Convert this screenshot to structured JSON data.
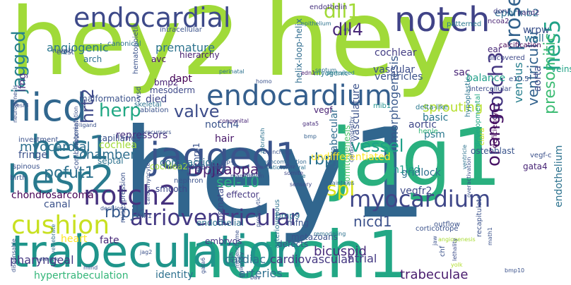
{
  "words": [
    {
      "text": "hey2",
      "color": "#a0da39",
      "rot": false
    },
    {
      "text": "hey",
      "color": "#a0da39",
      "rot": false
    },
    {
      "text": "hey1",
      "color": "#31668e",
      "rot": false
    },
    {
      "text": "notch1",
      "color": "#22a785",
      "rot": false
    },
    {
      "text": "jag1",
      "color": "#2ab07f",
      "rot": false
    },
    {
      "text": "trabeculation",
      "color": "#1f958b",
      "rot": false
    },
    {
      "text": "notch",
      "color": "#404387",
      "rot": false
    },
    {
      "text": "jagged1",
      "color": "#3a538b",
      "rot": false
    },
    {
      "text": "endocardial",
      "color": "#3e4a89",
      "rot": false
    },
    {
      "text": "hesr2",
      "color": "#297a8e",
      "rot": false
    },
    {
      "text": "nicd",
      "color": "#31678e",
      "rot": false
    },
    {
      "text": "hes1",
      "color": "#2b758e",
      "rot": false
    },
    {
      "text": "endocardium",
      "color": "#355f8d",
      "rot": false
    },
    {
      "text": "notch2",
      "color": "#46327e",
      "rot": false
    },
    {
      "text": "cushion",
      "color": "#c8e020",
      "rot": false
    },
    {
      "text": "myocardium",
      "color": "#3f4788",
      "rot": false
    },
    {
      "text": "atrioventricular",
      "color": "#443983",
      "rot": false
    },
    {
      "text": "jagged",
      "color": "#26828e",
      "rot": true
    },
    {
      "text": "dll1",
      "color": "#a2da37",
      "rot": false
    },
    {
      "text": "dll4",
      "color": "#482878",
      "rot": false
    },
    {
      "text": "prosensory",
      "color": "#33628d",
      "rot": true
    },
    {
      "text": "notch3",
      "color": "#453781",
      "rot": true
    },
    {
      "text": "orange",
      "color": "#471365",
      "rot": true
    },
    {
      "text": "hes5",
      "color": "#1fa187",
      "rot": true
    },
    {
      "text": "valve",
      "color": "#3d4d8a",
      "rot": false
    },
    {
      "text": "herp",
      "color": "#22a884",
      "rot": false
    },
    {
      "text": "hrt2",
      "color": "#3e4989",
      "rot": true
    },
    {
      "text": "rbpj",
      "color": "#2c718e",
      "rot": false
    },
    {
      "text": "rbpjk",
      "color": "#375b8d",
      "rot": false
    },
    {
      "text": "rbpjkappa",
      "color": "#481f70",
      "rot": false
    },
    {
      "text": "spl",
      "color": "#d8e219",
      "rot": false
    },
    {
      "text": "pofut1",
      "color": "#2d718e",
      "rot": false
    },
    {
      "text": "chamber",
      "color": "#2e6e8e",
      "rot": false
    },
    {
      "text": "vessel",
      "color": "#1fa088",
      "rot": false
    },
    {
      "text": "nicd1",
      "color": "#3b518b",
      "rot": false
    },
    {
      "text": "presomitic",
      "color": "#3dbc74",
      "rot": true
    },
    {
      "text": "ventricular",
      "color": "#33628d",
      "rot": true
    },
    {
      "text": "morphogenesis",
      "color": "#38588c",
      "rot": true
    },
    {
      "text": "sel-10",
      "color": "#28ae80",
      "rot": false
    },
    {
      "text": "bicuspid",
      "color": "#472a7a",
      "rot": false
    },
    {
      "text": "arteries",
      "color": "#2d708e",
      "rot": false
    },
    {
      "text": "cardiovascular",
      "color": "#453882",
      "rot": false
    },
    {
      "text": "atrial",
      "color": "#443983",
      "rot": false
    },
    {
      "text": "trabeculae",
      "color": "#481b6d",
      "rot": false
    },
    {
      "text": "hypertrabeculation",
      "color": "#34b679",
      "rot": false
    },
    {
      "text": "identity",
      "color": "#2d708e",
      "rot": false
    },
    {
      "text": "cardiac",
      "color": "#2e6f8e",
      "rot": false
    },
    {
      "text": "fate",
      "color": "#482979",
      "rot": false
    },
    {
      "text": "pharyngeal",
      "color": "#453882",
      "rot": false
    },
    {
      "text": "heart",
      "color": "#fde725",
      "rot": false
    },
    {
      "text": "canal",
      "color": "#3b528b",
      "rot": false
    },
    {
      "text": "chondrosarcoma",
      "color": "#440154",
      "rot": false
    },
    {
      "text": "myocardial",
      "color": "#2d708e",
      "rot": false
    },
    {
      "text": "repressors",
      "color": "#46307e",
      "rot": false
    },
    {
      "text": "notch4",
      "color": "#3a548c",
      "rot": false
    },
    {
      "text": "hair",
      "color": "#481769",
      "rot": false
    },
    {
      "text": "cochlea",
      "color": "#a0da39",
      "rot": false
    },
    {
      "text": "fringe",
      "color": "#3b528b",
      "rot": false
    },
    {
      "text": "angiogenic",
      "color": "#2a778e",
      "rot": false
    },
    {
      "text": "lfng",
      "color": "#472e7c",
      "rot": true
    },
    {
      "text": "premature",
      "color": "#2c738e",
      "rot": false
    },
    {
      "text": "dapt",
      "color": "#440154",
      "rot": false
    },
    {
      "text": "arch",
      "color": "#2c718e",
      "rot": false
    },
    {
      "text": "avc",
      "color": "#481668",
      "rot": false
    },
    {
      "text": "mesoderm",
      "color": "#3e4989",
      "rot": false
    },
    {
      "text": "died",
      "color": "#3f4788",
      "rot": false
    },
    {
      "text": "bmp2",
      "color": "#482576",
      "rot": false
    },
    {
      "text": "hierarchy",
      "color": "#482071",
      "rot": false
    },
    {
      "text": "helix-loop-helix",
      "color": "#2f6c8e",
      "rot": true
    },
    {
      "text": "trabecular",
      "color": "#2f6b8e",
      "rot": true
    },
    {
      "text": "vasculature",
      "color": "#3b528b",
      "rot": true
    },
    {
      "text": "somitogenesis",
      "color": "#50c46a",
      "rot": true
    },
    {
      "text": "sprouting",
      "color": "#b5de2b",
      "rot": false
    },
    {
      "text": "basic",
      "color": "#2a768e",
      "rot": false
    },
    {
      "text": "aortic",
      "color": "#3f4889",
      "rot": false
    },
    {
      "text": "venous",
      "color": "#277f8e",
      "rot": true
    },
    {
      "text": "aorta",
      "color": "#3e4a89",
      "rot": true
    },
    {
      "text": "endothelium",
      "color": "#2c728e",
      "rot": true
    },
    {
      "text": "n1icd",
      "color": "#1f9e89",
      "rot": false
    },
    {
      "text": "gridlock",
      "color": "#2d718e",
      "rot": false
    },
    {
      "text": "osteoblast",
      "color": "#3a548c",
      "rot": false
    },
    {
      "text": "ventricles",
      "color": "#3b528b",
      "rot": false
    },
    {
      "text": "sac",
      "color": "#482475",
      "rot": false
    },
    {
      "text": "balance",
      "color": "#1f9f88",
      "rot": false
    },
    {
      "text": "psm",
      "color": "#2a788e",
      "rot": false
    },
    {
      "text": "vascular",
      "color": "#3d4d8a",
      "rot": false
    },
    {
      "text": "cochlear",
      "color": "#433d84",
      "rot": false
    },
    {
      "text": "ephrinb2",
      "color": "#2e6d8e",
      "rot": false
    },
    {
      "text": "wrpw",
      "color": "#3b518b",
      "rot": false
    },
    {
      "text": "wall",
      "color": "#2c718e",
      "rot": false
    },
    {
      "text": "veins",
      "color": "#20a386",
      "rot": false
    },
    {
      "text": "ear",
      "color": "#482979",
      "rot": false
    },
    {
      "text": "e10.5",
      "color": "#3b528b",
      "rot": false
    },
    {
      "text": "calcification",
      "color": "#440154",
      "rot": false
    },
    {
      "text": "uncovered",
      "color": "#3e4989",
      "rot": false
    },
    {
      "text": "ncoa2",
      "color": "#482071",
      "rot": false
    },
    {
      "text": "patterned",
      "color": "#2a788e",
      "rot": false
    },
    {
      "text": "dorv",
      "color": "#433e85",
      "rot": false
    },
    {
      "text": "hand2",
      "color": "#46327e",
      "rot": false
    },
    {
      "text": "hypoplastic",
      "color": "#2b748e",
      "rot": true
    },
    {
      "text": "intercellular",
      "color": "#3d4d8a",
      "rot": false
    },
    {
      "text": "clara",
      "color": "#cde11d",
      "rot": true
    },
    {
      "text": "developmental",
      "color": "#22a884",
      "rot": true
    },
    {
      "text": "deficiency",
      "color": "#440154",
      "rot": true
    },
    {
      "text": "vegf-c",
      "color": "#3b518b",
      "rot": false
    },
    {
      "text": "gata4",
      "color": "#482576",
      "rot": false
    },
    {
      "text": "vegfr2",
      "color": "#3e4a89",
      "rot": false
    },
    {
      "text": "myogenic",
      "color": "#2b758e",
      "rot": false
    },
    {
      "text": "vegf",
      "color": "#482173",
      "rot": false
    },
    {
      "text": "mib1",
      "color": "#21918c",
      "rot": false
    },
    {
      "text": "delta-like",
      "color": "#2a788e",
      "rot": false
    },
    {
      "text": "henle",
      "color": "#35b779",
      "rot": false
    },
    {
      "text": "undifferentiated",
      "color": "#fde725",
      "rot": false
    },
    {
      "text": "edn1",
      "color": "#481c6e",
      "rot": false
    },
    {
      "text": "gata5",
      "color": "#472d7b",
      "rot": false
    },
    {
      "text": "endothelin",
      "color": "#46327e",
      "rot": false
    },
    {
      "text": "av",
      "color": "#3b528b",
      "rot": false
    },
    {
      "text": "septum",
      "color": "#2d708e",
      "rot": false
    },
    {
      "text": "perturbed",
      "color": "#26828e",
      "rot": false
    },
    {
      "text": "homo",
      "color": "#3b528b",
      "rot": false
    },
    {
      "text": "epithelium",
      "color": "#2c728e",
      "rot": false
    },
    {
      "text": "perinatal",
      "color": "#2c718e",
      "rot": false
    },
    {
      "text": "congenital",
      "color": "#482576",
      "rot": false
    },
    {
      "text": "branching",
      "color": "#3b528b",
      "rot": false
    },
    {
      "text": "spatiotemporal",
      "color": "#2c718e",
      "rot": false
    },
    {
      "text": "noncompaction",
      "color": "#31678e",
      "rot": false
    },
    {
      "text": "sensory",
      "color": "#3e4a89",
      "rot": false
    },
    {
      "text": "rise",
      "color": "#2c718e",
      "rot": false
    },
    {
      "text": "maintains",
      "color": "#31678e",
      "rot": false
    },
    {
      "text": "bmp",
      "color": "#34608d",
      "rot": false
    },
    {
      "text": "effector",
      "color": "#453882",
      "rot": false
    },
    {
      "text": "bmp9",
      "color": "#2c718e",
      "rot": false
    },
    {
      "text": "mfng",
      "color": "#3b528b",
      "rot": false
    },
    {
      "text": "embryos",
      "color": "#443983",
      "rot": false
    },
    {
      "text": "metazoans",
      "color": "#3b528b",
      "rot": false
    },
    {
      "text": "defects",
      "color": "#3b528b",
      "rot": false
    },
    {
      "text": "remodeling",
      "color": "#2c718e",
      "rot": false
    },
    {
      "text": "proteolytic",
      "color": "#3b528b",
      "rot": true
    },
    {
      "text": "zebrafish",
      "color": "#2c718e",
      "rot": true
    },
    {
      "text": "ehand",
      "color": "#3b528b",
      "rot": false
    },
    {
      "text": "mammalian",
      "color": "#3b528b",
      "rot": false
    },
    {
      "text": "somite",
      "color": "#3f4788",
      "rot": false
    },
    {
      "text": "corticotrope",
      "color": "#3b528b",
      "rot": false
    },
    {
      "text": "angiogenesis",
      "color": "#a8db34",
      "rot": false
    },
    {
      "text": "outflow",
      "color": "#3b528b",
      "rot": false
    },
    {
      "text": "recapitulate",
      "color": "#3b528b",
      "rot": true
    },
    {
      "text": "chf",
      "color": "#3b528b",
      "rot": true
    },
    {
      "text": "jaw",
      "color": "#3b528b",
      "rot": true
    },
    {
      "text": "math1",
      "color": "#3b528b",
      "rot": true
    },
    {
      "text": "bmp10",
      "color": "#3b528b",
      "rot": false
    },
    {
      "text": "yolk",
      "color": "#b2dd2d",
      "rot": false
    },
    {
      "text": "lethality",
      "color": "#3d4d8a",
      "rot": true
    },
    {
      "text": "arteriovenous",
      "color": "#2c718e",
      "rot": true
    },
    {
      "text": "postnatal",
      "color": "#3e4989",
      "rot": true
    },
    {
      "text": "nrp1",
      "color": "#3b528b",
      "rot": true
    },
    {
      "text": "endothelial",
      "color": "#2c718e",
      "rot": false
    },
    {
      "text": "nephron",
      "color": "#3b528b",
      "rot": false
    },
    {
      "text": "progenitor",
      "color": "#3b528b",
      "rot": false
    },
    {
      "text": "smooth",
      "color": "#3e4989",
      "rot": false
    },
    {
      "text": "cochlea2",
      "color": "#a0da39",
      "rot": false
    },
    {
      "text": "combinatorial",
      "color": "#3b528b",
      "rot": true
    },
    {
      "text": "misexpression",
      "color": "#3b528b",
      "rot": true
    },
    {
      "text": "capillaries",
      "color": "#3b528b",
      "rot": false
    },
    {
      "text": "septal",
      "color": "#2c718e",
      "rot": false
    },
    {
      "text": "compaction",
      "color": "#2c718e",
      "rot": false
    },
    {
      "text": "investment",
      "color": "#3b528b",
      "rot": false
    },
    {
      "text": "cardiomyocyte",
      "color": "#3b528b",
      "rot": true
    },
    {
      "text": "segmentation",
      "color": "#3b528b",
      "rot": true
    },
    {
      "text": "hematopoietic",
      "color": "#3b528b",
      "rot": true
    },
    {
      "text": "ablation",
      "color": "#3b528b",
      "rot": false
    },
    {
      "text": "skeletal",
      "color": "#2c718e",
      "rot": false
    },
    {
      "text": "vsd",
      "color": "#3b528b",
      "rot": true
    },
    {
      "text": "malformations",
      "color": "#3b528b",
      "rot": false
    },
    {
      "text": "numb",
      "color": "#3b528b",
      "rot": false
    },
    {
      "text": "crest",
      "color": "#3b528b",
      "rot": false
    },
    {
      "text": "canonical",
      "color": "#2c718e",
      "rot": false
    },
    {
      "text": "intracellular",
      "color": "#3b528b",
      "rot": false
    },
    {
      "text": "rbp-j",
      "color": "#3b528b",
      "rot": false
    },
    {
      "text": "alk1",
      "color": "#3b528b",
      "rot": false
    },
    {
      "text": "vertebrate",
      "color": "#2c718e",
      "rot": true
    },
    {
      "text": "hesr3",
      "color": "#3b528b",
      "rot": false
    },
    {
      "text": "neurogenesis",
      "color": "#3b528b",
      "rot": true
    },
    {
      "text": "ligand",
      "color": "#3b528b",
      "rot": false
    },
    {
      "text": "spinous",
      "color": "#3b528b",
      "rot": false
    },
    {
      "text": "birth",
      "color": "#3b528b",
      "rot": false
    },
    {
      "text": "precursors",
      "color": "#3b528b",
      "rot": false
    },
    {
      "text": "decisions",
      "color": "#3b528b",
      "rot": false
    },
    {
      "text": "network",
      "color": "#3b528b",
      "rot": false
    },
    {
      "text": "jag2",
      "color": "#3b528b",
      "rot": false
    },
    {
      "text": "mind",
      "color": "#3b528b",
      "rot": false
    },
    {
      "text": "dispensable",
      "color": "#3b528b",
      "rot": true
    },
    {
      "text": "strikingly",
      "color": "#3b528b",
      "rot": true
    },
    {
      "text": "mesenchyme",
      "color": "#3b528b",
      "rot": true
    },
    {
      "text": "dsh",
      "color": "#3b528b",
      "rot": true
    },
    {
      "text": "bav",
      "color": "#3b528b",
      "rot": false
    },
    {
      "text": "gata6",
      "color": "#3b528b",
      "rot": true
    },
    {
      "text": "cardiomyopathy",
      "color": "#3b528b",
      "rot": true
    },
    {
      "text": "overactivation",
      "color": "#3b528b",
      "rot": true
    },
    {
      "text": "ventricle",
      "color": "#2c718e",
      "rot": true
    }
  ]
}
